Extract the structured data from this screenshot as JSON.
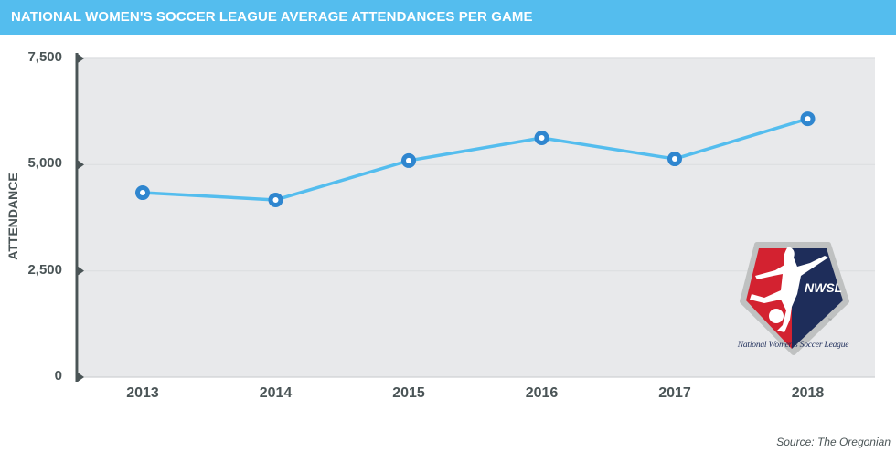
{
  "header": {
    "title": "NATIONAL WOMEN'S SOCCER LEAGUE AVERAGE ATTENDANCES PER GAME"
  },
  "chart_data": {
    "type": "line",
    "title": "NATIONAL WOMEN'S SOCCER LEAGUE AVERAGE ATTENDANCES PER GAME",
    "xlabel": "",
    "ylabel": "ATTENDANCE",
    "categories": [
      "2013",
      "2014",
      "2015",
      "2016",
      "2017",
      "2018"
    ],
    "series": [
      {
        "name": "Average attendance",
        "values": [
          4340,
          4170,
          5095,
          5630,
          5135,
          6080
        ]
      }
    ],
    "ylim": [
      0,
      7500
    ],
    "yticks": [
      0,
      2500,
      5000,
      7500
    ],
    "ytick_labels": [
      "0",
      "2,500",
      "5,000",
      "7,500"
    ],
    "grid": true,
    "colors": {
      "line": "#54bdee",
      "marker": "#2f86cf",
      "axis": "#4a5456",
      "plot_bg": "#e8e9eb",
      "header": "#54bdee"
    }
  },
  "logo": {
    "badge_text": "NWSL",
    "caption": "National Women's Soccer League",
    "tm": "™"
  },
  "footer": {
    "source": "Source: The Oregonian"
  }
}
